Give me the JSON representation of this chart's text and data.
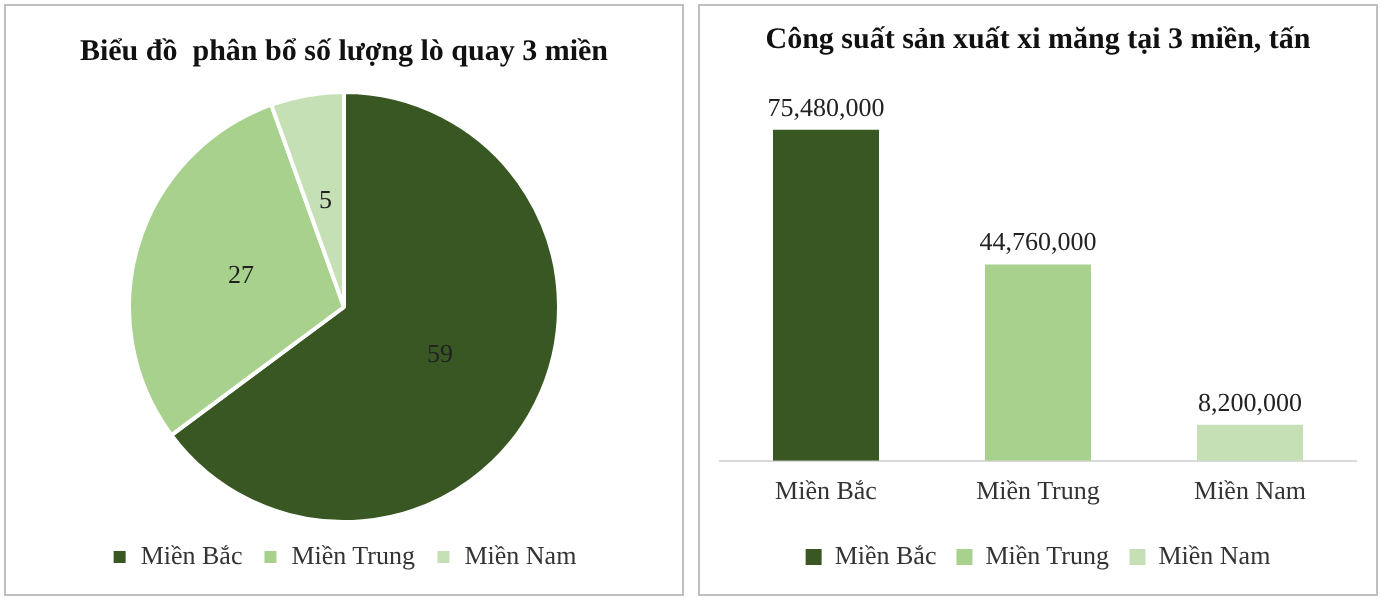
{
  "chart_data": [
    {
      "type": "pie",
      "title": "Biểu đồ  phân bổ số lượng lò quay 3 miền",
      "categories": [
        "Miền Bắc",
        "Miền Trung",
        "Miền Nam"
      ],
      "values": [
        59,
        27,
        5
      ],
      "colors": [
        "#385723",
        "#a9d18e",
        "#c5e0b4"
      ],
      "data_labels": true,
      "legend": "bottom"
    },
    {
      "type": "bar",
      "title": "Công suất sản xuất xi măng tại 3 miền, tấn",
      "categories": [
        "Miền Bắc",
        "Miền Trung",
        "Miền Nam"
      ],
      "legend": "bottom",
      "grid": false,
      "series": [
        {
          "name": "Miền Bắc",
          "color": "#385723",
          "values": [
            75480000,
            null,
            null
          ],
          "value_labels": [
            "75,480,000",
            null,
            null
          ]
        },
        {
          "name": "Miền Trung",
          "color": "#a9d18e",
          "values": [
            null,
            44760000,
            null
          ],
          "value_labels": [
            null,
            "44,760,000",
            null
          ]
        },
        {
          "name": "Miền Nam",
          "color": "#c5e0b4",
          "values": [
            null,
            null,
            8200000
          ],
          "value_labels": [
            null,
            null,
            "8,200,000"
          ]
        }
      ]
    }
  ]
}
